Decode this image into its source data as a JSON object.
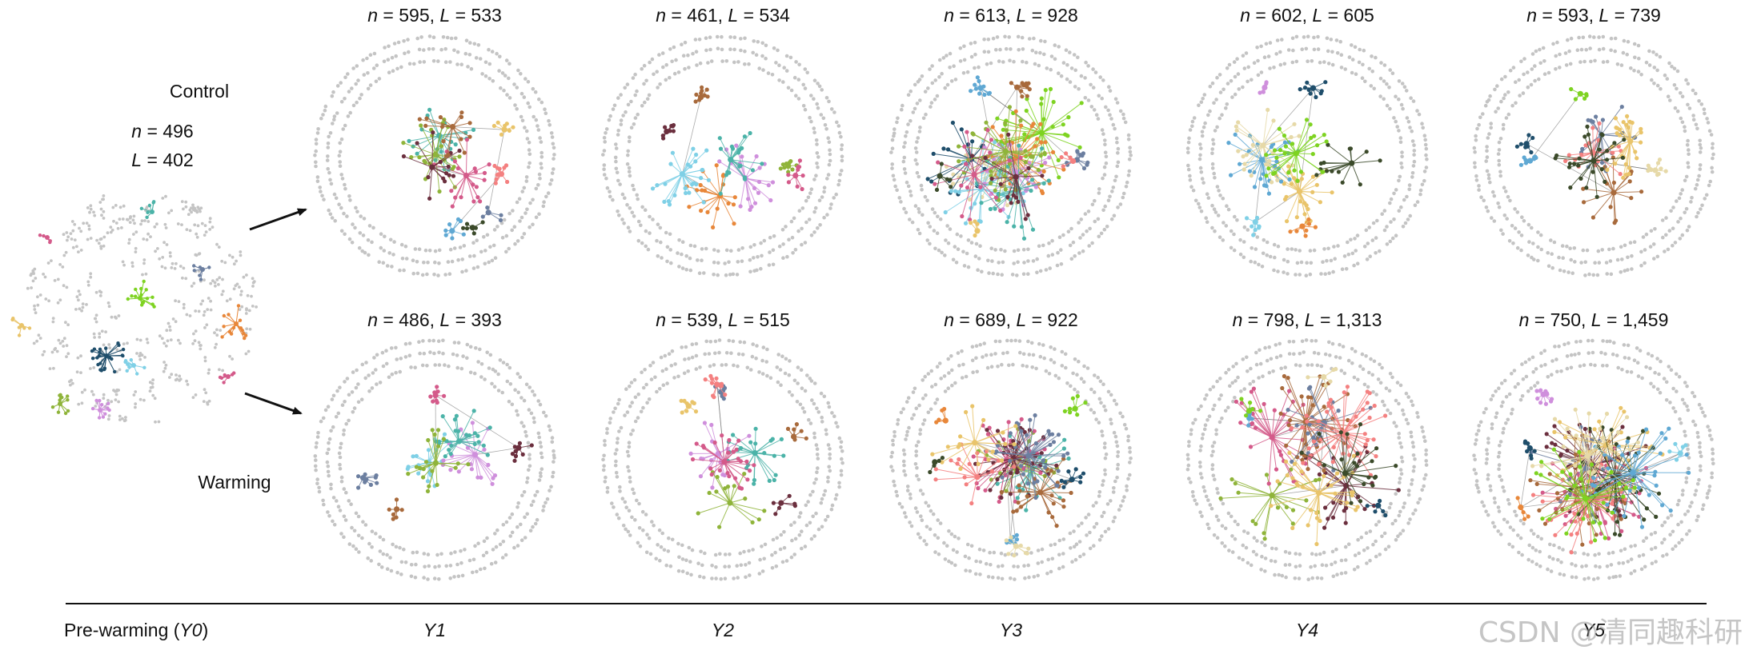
{
  "rows": [
    {
      "label": "Control",
      "n": "496",
      "L": "402"
    },
    {
      "label": "Warming"
    }
  ],
  "pre_warming_label": "Pre-warming (",
  "pre_warming_code": "Y0",
  "pre_warming_close": ")",
  "years": [
    "Y1",
    "Y2",
    "Y3",
    "Y4",
    "Y5"
  ],
  "control_stats": [
    {
      "n": "595",
      "L": "533"
    },
    {
      "n": "461",
      "L": "534"
    },
    {
      "n": "613",
      "L": "928"
    },
    {
      "n": "602",
      "L": "605"
    },
    {
      "n": "593",
      "L": "739"
    }
  ],
  "warming_stats": [
    {
      "n": "486",
      "L": "393"
    },
    {
      "n": "539",
      "L": "515"
    },
    {
      "n": "689",
      "L": "922"
    },
    {
      "n": "798",
      "L": "1,313"
    },
    {
      "n": "750",
      "L": "1,459"
    }
  ],
  "symbols": {
    "n": "n",
    "L": "L",
    "eq": " = ",
    "sep": ", "
  },
  "watermark": "CSDN @清同趣科研",
  "colors": {
    "isolated_node": "#c4c4c4",
    "modules": [
      "#7ed321",
      "#1f4e6b",
      "#e8873a",
      "#7fd0e6",
      "#cf8fdc",
      "#4bb3a8",
      "#8fb43a",
      "#d45a8a",
      "#6b2f3e",
      "#a86a3c",
      "#6c7fa0",
      "#f48080",
      "#e9c46a",
      "#3b4a2a",
      "#5fa8d3",
      "#e6d9a8"
    ]
  }
}
